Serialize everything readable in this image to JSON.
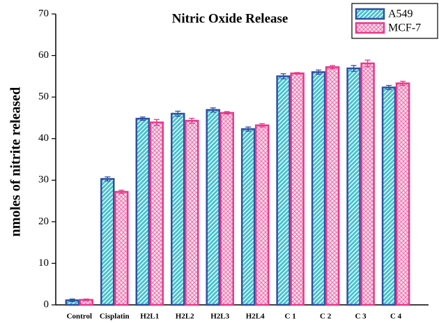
{
  "chart_data": {
    "type": "bar",
    "title": "Nitric Oxide Release",
    "ylabel": "nmoles of nitrite released",
    "categories": [
      "Control",
      "Cisplatin",
      "H2L1",
      "H2L2",
      "H2L3",
      "H2L4",
      "C 1",
      "C 2",
      "C 3",
      "C 4"
    ],
    "series": [
      {
        "name": "A549",
        "color": "#2e4fa3",
        "fill": "#45c3cf",
        "hatch": "diagonal",
        "values": [
          1.1,
          30.3,
          44.8,
          46.0,
          46.9,
          42.3,
          55.0,
          56.0,
          56.9,
          52.3
        ],
        "errors": [
          0.3,
          0.5,
          0.4,
          0.6,
          0.5,
          0.5,
          0.6,
          0.5,
          0.7,
          0.5
        ]
      },
      {
        "name": "MCF-7",
        "color": "#e8388a",
        "fill": "#f07ab2",
        "hatch": "cross",
        "values": [
          1.2,
          27.2,
          43.9,
          44.3,
          46.2,
          43.2,
          55.7,
          57.2,
          58.1,
          53.3
        ],
        "errors": [
          0.2,
          0.4,
          0.7,
          0.6,
          0.3,
          0.4,
          0.2,
          0.4,
          0.8,
          0.5
        ]
      }
    ],
    "ylim": [
      0,
      70
    ],
    "yticks": [
      0,
      10,
      20,
      30,
      40,
      50,
      60,
      70
    ],
    "grid": false,
    "legend": "upper right"
  }
}
